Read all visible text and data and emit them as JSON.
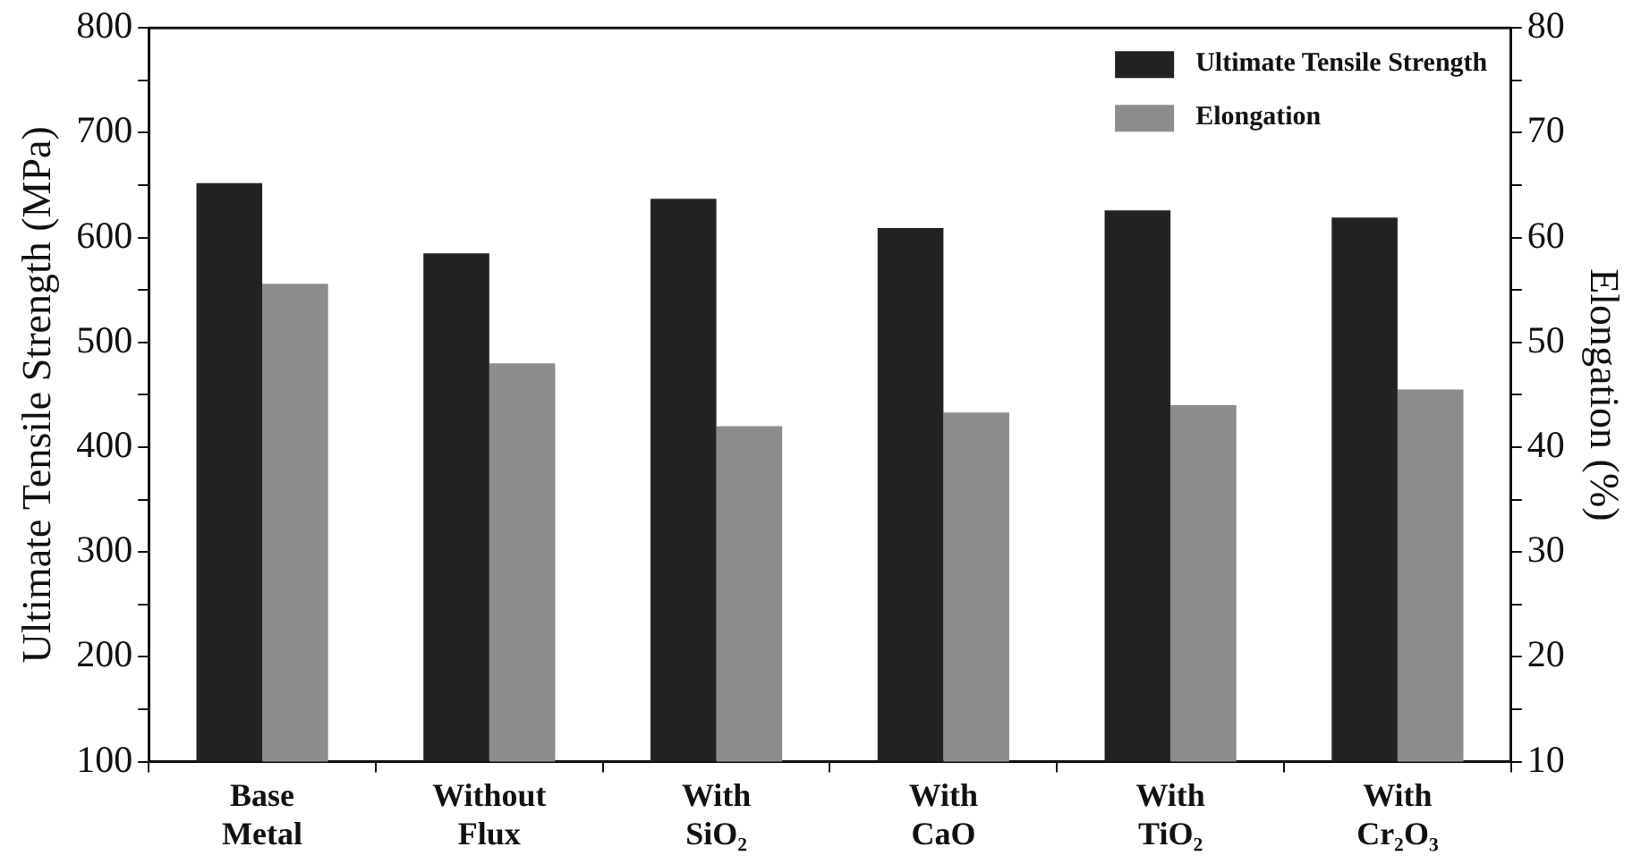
{
  "chart_data": {
    "type": "bar",
    "categories": [
      "Base Metal",
      "Without Flux",
      "With SiO₂",
      "With CaO",
      "With TiO₂",
      "With Cr₂O₃"
    ],
    "series": [
      {
        "name": "Ultimate Tensile Strength",
        "color": "#222222",
        "values": [
          652,
          585,
          637,
          609,
          626,
          619
        ]
      },
      {
        "name": "Elongation",
        "color": "#8c8c8c",
        "axis": "y2",
        "values": [
          55.6,
          48,
          42,
          43.3,
          44,
          45.5
        ]
      }
    ],
    "ylabel": "Ultimate Tensile Strength (MPa)",
    "y2label": "Elongation (%)",
    "ylim": [
      100,
      800
    ],
    "yticks": [
      100,
      {
        "value": 150,
        "label": null
      },
      200,
      {
        "value": 250,
        "label": null
      },
      300,
      {
        "value": 350,
        "label": null
      },
      400,
      {
        "value": 450,
        "label": null
      },
      500,
      {
        "value": 550,
        "label": null
      },
      600,
      {
        "value": 650,
        "label": null
      },
      700,
      {
        "value": 750,
        "label": null
      },
      800
    ],
    "y2lim": [
      10,
      80
    ],
    "y2ticks": [
      10,
      {
        "value": 15,
        "label": null
      },
      20,
      {
        "value": 25,
        "label": null
      },
      30,
      {
        "value": 35,
        "label": null
      },
      40,
      {
        "value": 45,
        "label": null
      },
      50,
      {
        "value": 55,
        "label": null
      },
      60,
      {
        "value": 65,
        "label": null
      },
      70,
      {
        "value": 75,
        "label": null
      },
      80
    ],
    "grid": false,
    "legend": "top right"
  }
}
